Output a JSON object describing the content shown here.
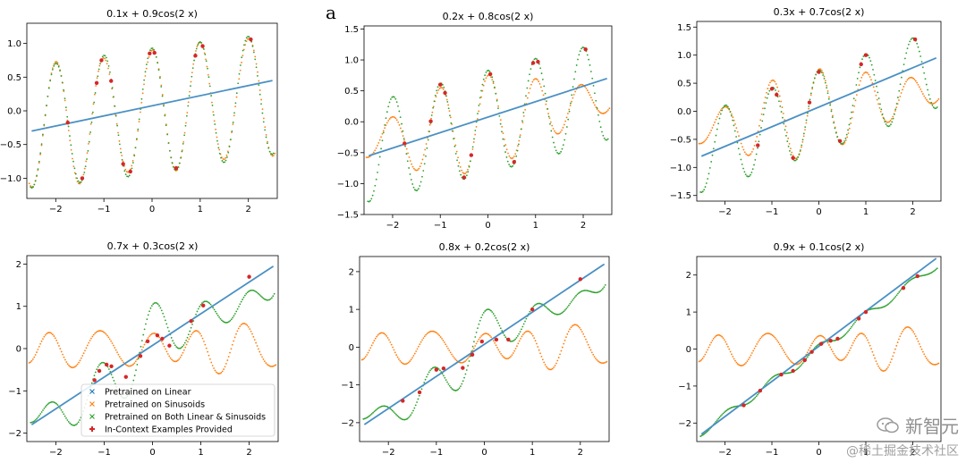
{
  "panel_letter": "a",
  "watermark": {
    "brand": "新智元",
    "site": "@稀土掘金技术社区"
  },
  "legend_entries": [
    {
      "label": "Pretrained on Linear",
      "marker": "x",
      "color": "#1f77b4"
    },
    {
      "label": "Pretrained on Sinusoids",
      "marker": "x",
      "color": "#ff7f0e"
    },
    {
      "label": "Pretrained on Both Linear & Sinusoids",
      "marker": "x",
      "color": "#2ca02c"
    },
    {
      "label": "In-Context Examples Provided",
      "marker": "plus",
      "color": "#d62728"
    }
  ],
  "chart_data": [
    {
      "type": "scatter",
      "title": "0.1x + 0.9cos(2  x)",
      "a": 0.1,
      "b": 0.9,
      "xlim": [
        -2.6,
        2.6
      ],
      "ylim": [
        -1.3,
        1.3
      ],
      "xticks": [
        -2,
        -1,
        0,
        1,
        2
      ],
      "yticks": [
        -1.0,
        -0.5,
        0.0,
        0.5,
        1.0
      ],
      "ytick_labels": [
        "−1.0",
        "−0.5",
        "0.0",
        "0.5",
        "1.0"
      ],
      "sinusoid_pretrained_fit": "near target",
      "both_pretrained_fit": "near target",
      "in_context_x": [
        -1.75,
        -1.45,
        -1.15,
        -1.05,
        -0.85,
        -0.6,
        -0.45,
        -0.05,
        0.05,
        0.5,
        0.9,
        1.05,
        2.05
      ]
    },
    {
      "type": "scatter",
      "title": "0.2x + 0.8cos(2  x)",
      "a": 0.2,
      "b": 0.8,
      "xlim": [
        -2.6,
        2.6
      ],
      "ylim": [
        -1.5,
        1.55
      ],
      "xticks": [
        -2,
        -1,
        0,
        1,
        2
      ],
      "yticks": [
        -1.5,
        -1.0,
        -0.5,
        0.0,
        0.5,
        1.0,
        1.5
      ],
      "ytick_labels": [
        "−1.5",
        "−1.0",
        "−0.5",
        "0.0",
        "0.5",
        "1.0",
        "1.5"
      ],
      "sinusoid_pretrained_fit": "partial",
      "both_pretrained_fit": "near target",
      "in_context_x": [
        -1.75,
        -1.2,
        -1.0,
        -0.9,
        -0.5,
        -0.35,
        0.05,
        0.55,
        0.95,
        1.05,
        2.05
      ]
    },
    {
      "type": "scatter",
      "title": "0.3x + 0.7cos(2  x)",
      "a": 0.3,
      "b": 0.7,
      "xlim": [
        -2.6,
        2.6
      ],
      "ylim": [
        -1.6,
        1.6
      ],
      "xticks": [
        -2,
        -1,
        0,
        1,
        2
      ],
      "yticks": [
        -1.5,
        -1.0,
        -0.5,
        0.0,
        0.5,
        1.0,
        1.5
      ],
      "ytick_labels": [
        "−1.5",
        "−1.0",
        "−0.5",
        "0.0",
        "0.5",
        "1.0",
        "1.5"
      ],
      "sinusoid_pretrained_fit": "partial",
      "both_pretrained_fit": "near target",
      "in_context_x": [
        -1.3,
        -1.0,
        -0.9,
        -0.55,
        -0.2,
        0.0,
        0.45,
        0.9,
        1.0,
        2.05
      ]
    },
    {
      "type": "scatter",
      "title": "0.7x + 0.3cos(2  x)",
      "a": 0.7,
      "b": 0.3,
      "xlim": [
        -2.6,
        2.6
      ],
      "ylim": [
        -2.2,
        2.2
      ],
      "xticks": [
        -2,
        -1,
        0,
        1,
        2
      ],
      "yticks": [
        -2,
        -1,
        0,
        1,
        2
      ],
      "ytick_labels": [
        "−2",
        "−1",
        "0",
        "1",
        "2"
      ],
      "sinusoid_pretrained_fit": "poor",
      "both_pretrained_fit": "noisy",
      "in_context_x": [
        -1.2,
        -1.1,
        -0.95,
        -0.85,
        -0.55,
        -0.25,
        -0.1,
        0.1,
        0.2,
        0.35,
        0.8,
        1.05,
        2.0
      ],
      "legend_location": "lower-center"
    },
    {
      "type": "scatter",
      "title": "0.8x + 0.2cos(2  x)",
      "a": 0.8,
      "b": 0.2,
      "xlim": [
        -2.6,
        2.6
      ],
      "ylim": [
        -2.5,
        2.4
      ],
      "xticks": [
        -2,
        -1,
        0,
        1,
        2
      ],
      "yticks": [
        -2,
        -1,
        0,
        1,
        2
      ],
      "ytick_labels": [
        "−2",
        "−1",
        "0",
        "1",
        "2"
      ],
      "sinusoid_pretrained_fit": "poor",
      "both_pretrained_fit": "noisy",
      "in_context_x": [
        -1.7,
        -1.35,
        -1.0,
        -0.85,
        -0.45,
        -0.25,
        -0.05,
        0.25,
        0.5,
        1.0,
        2.0
      ]
    },
    {
      "type": "scatter",
      "title": "0.9x + 0.1cos(2  x)",
      "a": 0.9,
      "b": 0.1,
      "xlim": [
        -2.6,
        2.6
      ],
      "ylim": [
        -2.5,
        2.5
      ],
      "xticks": [
        -2,
        -1,
        0,
        1,
        2
      ],
      "yticks": [
        -2,
        -1,
        0,
        1,
        2
      ],
      "ytick_labels": [
        "−2",
        "−1",
        "0",
        "1",
        "2"
      ],
      "sinusoid_pretrained_fit": "poor",
      "both_pretrained_fit": "near target",
      "in_context_x": [
        -1.6,
        -1.25,
        -0.8,
        -0.55,
        -0.3,
        -0.15,
        0.05,
        0.25,
        0.4,
        0.85,
        1.0,
        1.8,
        2.1
      ]
    }
  ]
}
